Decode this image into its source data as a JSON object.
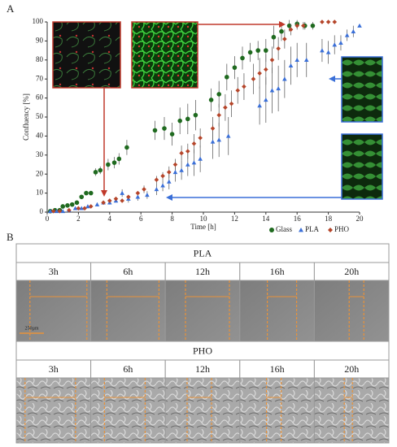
{
  "chart_data": {
    "type": "scatter",
    "panel_label": "A",
    "xlabel": "Time [h]",
    "ylabel": "Confluency [%]",
    "xlim": [
      0,
      20
    ],
    "xticks": [
      0,
      2,
      4,
      6,
      8,
      10,
      12,
      14,
      16,
      18,
      20
    ],
    "ylim": [
      0,
      100
    ],
    "yticks": [
      0,
      10,
      20,
      30,
      40,
      50,
      60,
      70,
      80,
      90,
      100
    ],
    "legend": "lower right",
    "series": [
      {
        "name": "Glass",
        "color": "#1f6a1f",
        "marker": "circle",
        "x": [
          0.2,
          0.5,
          0.8,
          1,
          1.3,
          1.6,
          1.9,
          2.2,
          2.5,
          2.8,
          3.1,
          3.4,
          3.9,
          4.3,
          4.6,
          5.1,
          6.9,
          7.5,
          8,
          8.5,
          9,
          9.5,
          10.5,
          11,
          11.5,
          12,
          12.5,
          13,
          13.5,
          14,
          14.5,
          15,
          15.5,
          16,
          16.5,
          17
        ],
        "values": [
          0.5,
          1,
          1,
          3,
          3.5,
          4,
          5,
          8,
          10,
          10,
          21,
          22,
          25,
          26,
          28,
          34,
          43,
          44,
          41,
          48,
          49,
          51,
          59,
          62,
          71,
          76,
          81,
          84,
          85,
          85,
          92,
          95,
          98,
          99,
          98,
          98
        ],
        "errors": [
          0.3,
          0.3,
          0.3,
          0.5,
          0.5,
          0.5,
          0.8,
          1,
          1,
          1,
          2,
          2,
          3,
          3,
          3,
          4,
          5,
          6,
          6,
          7,
          8,
          8,
          6,
          7,
          7,
          6,
          6,
          5,
          5,
          6,
          6,
          5,
          3,
          2,
          2,
          2
        ]
      },
      {
        "name": "PLA",
        "color": "#3a6fd8",
        "marker": "triangle",
        "x": [
          0.2,
          0.6,
          1,
          1.4,
          1.8,
          2.2,
          2.6,
          3.2,
          3.6,
          4,
          4.4,
          4.8,
          5.2,
          5.8,
          6.4,
          7,
          7.4,
          7.8,
          8.2,
          8.6,
          9,
          9.4,
          9.8,
          10.6,
          11,
          11.6,
          13.6,
          14,
          14.4,
          14.8,
          15.2,
          15.6,
          16,
          16.6,
          17.6,
          18,
          18.4,
          18.8,
          19.2,
          19.6,
          20
        ],
        "values": [
          0.5,
          0.5,
          0.5,
          1,
          2,
          2,
          3,
          4,
          5,
          5,
          6,
          10,
          7,
          8,
          9,
          12,
          14,
          16,
          21,
          22,
          25,
          26,
          28,
          37,
          38,
          40,
          56,
          59,
          64,
          65,
          70,
          77,
          80,
          80,
          85,
          84,
          88,
          89,
          93,
          95,
          98
        ],
        "errors": [
          0.3,
          0.3,
          0.3,
          0.5,
          0.5,
          0.5,
          0.8,
          1,
          1,
          1,
          1,
          2,
          2,
          2,
          2,
          3,
          3,
          4,
          5,
          5,
          6,
          7,
          7,
          9,
          9,
          10,
          10,
          12,
          12,
          12,
          10,
          10,
          9,
          9,
          6,
          6,
          5,
          4,
          3,
          3,
          0
        ]
      },
      {
        "name": "PHO",
        "color": "#b5452a",
        "marker": "diamond",
        "x": [
          0.4,
          0.8,
          1.4,
          2,
          2.4,
          2.8,
          3.6,
          4,
          4.4,
          4.8,
          5.2,
          5.8,
          6.2,
          7,
          7.4,
          7.8,
          8.2,
          8.6,
          9,
          9.4,
          9.8,
          10.6,
          11,
          11.4,
          11.8,
          12.2,
          12.6,
          13.2,
          13.6,
          14,
          14.4,
          14.8,
          15.2,
          15.6,
          16,
          16.4,
          17.6,
          18,
          18.4
        ],
        "values": [
          0.5,
          0.5,
          1,
          2,
          2,
          3,
          5,
          6,
          7,
          6,
          8,
          10,
          12,
          17,
          19,
          21,
          25,
          31,
          32,
          36,
          39,
          44,
          51,
          55,
          57,
          64,
          66,
          70,
          73,
          75,
          80,
          86,
          91,
          96,
          98,
          98,
          100,
          100,
          100
        ],
        "errors": [
          0.3,
          0.3,
          0.5,
          0.5,
          0.5,
          0.8,
          1,
          1,
          1,
          1,
          1,
          1,
          2,
          2,
          2,
          3,
          3,
          4,
          4,
          5,
          5,
          6,
          6,
          7,
          7,
          7,
          7,
          8,
          8,
          8,
          7,
          6,
          5,
          3,
          2,
          2,
          1,
          1,
          1
        ]
      }
    ]
  },
  "panel_b": {
    "panel_label": "B",
    "scale_label": "250µm",
    "sections": [
      {
        "title": "PLA",
        "times": [
          "3h",
          "6h",
          "12h",
          "16h",
          "20h"
        ]
      },
      {
        "title": "PHO",
        "times": [
          "3h",
          "6h",
          "12h",
          "16h",
          "20h"
        ]
      }
    ]
  }
}
